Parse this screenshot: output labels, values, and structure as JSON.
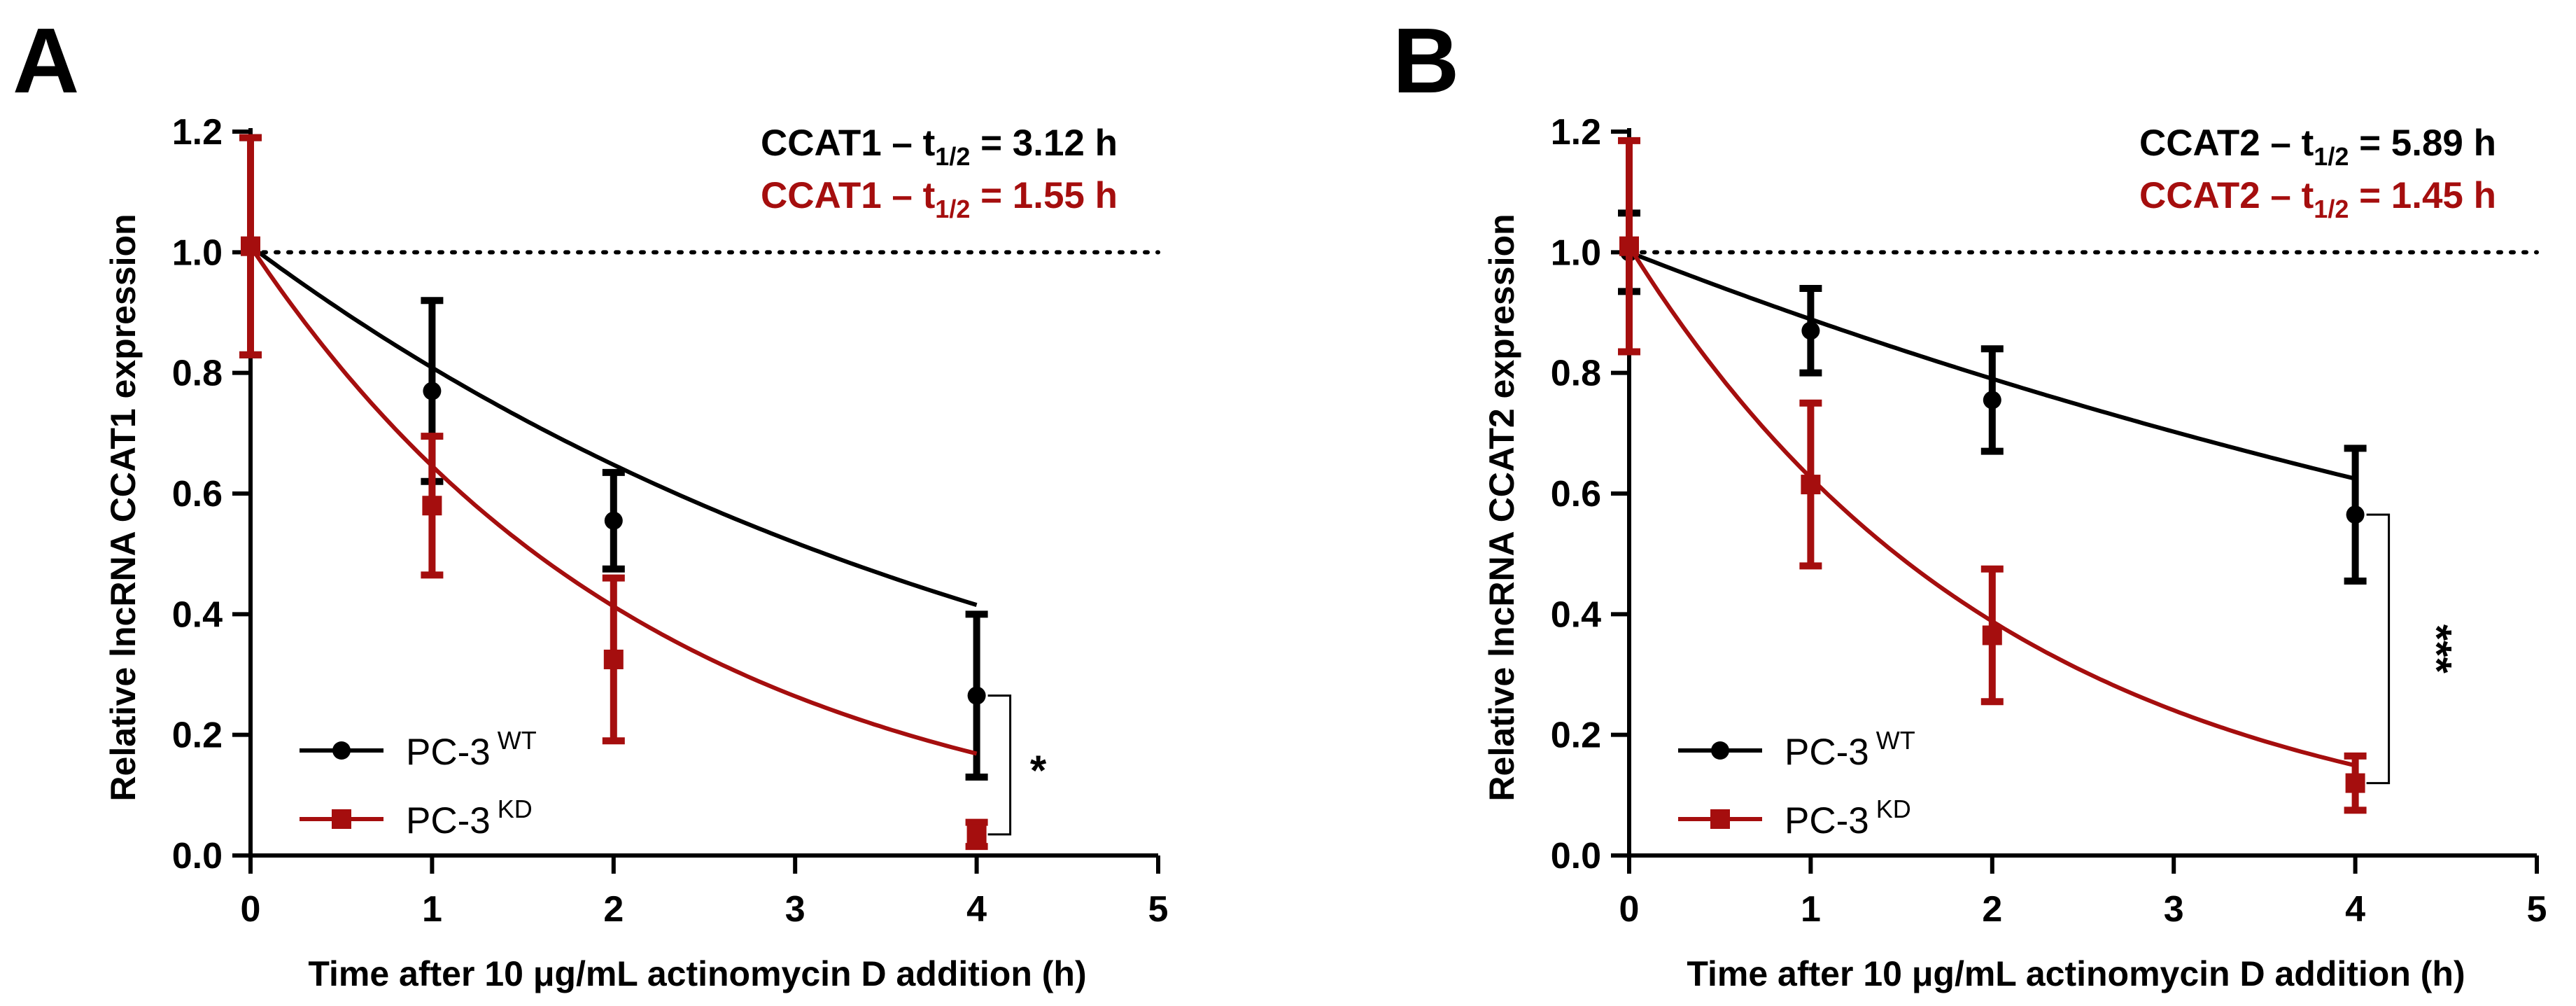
{
  "colors": {
    "wt": "#000000",
    "kd": "#a50e0e",
    "reference_line": "#000000"
  },
  "chart_data": [
    {
      "type": "line",
      "panel": "A",
      "xlabel": "Time after 10 μg/mL actinomycin D addition (h)",
      "ylabel": "Relative lncRNA CCAT1 expression",
      "xlim": [
        0,
        5
      ],
      "ylim": [
        0,
        1.2
      ],
      "x_ticks": [
        "0",
        "1",
        "2",
        "3",
        "4",
        "5"
      ],
      "y_ticks": [
        "0.0",
        "0.2",
        "0.4",
        "0.6",
        "0.8",
        "1.0",
        "1.2"
      ],
      "reference_line_y": 1.0,
      "series": [
        {
          "name": "WT",
          "legend_base": "PC-3",
          "legend_sup": "WT",
          "marker": "circle",
          "x": [
            0,
            1,
            2,
            4
          ],
          "y": [
            1.01,
            0.77,
            0.555,
            0.265
          ],
          "err": [
            0.18,
            0.15,
            0.08,
            0.135
          ],
          "half_life_h": 3.12,
          "annotation": {
            "prefix": "CCAT1 – t",
            "sub": "1/2",
            "suffix": " = 3.12 h"
          }
        },
        {
          "name": "KD",
          "legend_base": "PC-3",
          "legend_sup": "KD",
          "marker": "square",
          "x": [
            0,
            1,
            2,
            4
          ],
          "y": [
            1.01,
            0.58,
            0.325,
            0.035
          ],
          "err": [
            0.18,
            0.115,
            0.135,
            0.02
          ],
          "half_life_h": 1.55,
          "annotation": {
            "prefix": "CCAT1 – t",
            "sub": "1/2",
            "suffix": " = 1.55 h"
          }
        }
      ],
      "significance": {
        "label": "*",
        "x": 4,
        "y_range": [
          0.035,
          0.265
        ]
      }
    },
    {
      "type": "line",
      "panel": "B",
      "xlabel": "Time after 10 μg/mL actinomycin D addition (h)",
      "ylabel": "Relative lncRNA CCAT2 expression",
      "xlim": [
        0,
        5
      ],
      "ylim": [
        0,
        1.2
      ],
      "x_ticks": [
        "0",
        "1",
        "2",
        "3",
        "4",
        "5"
      ],
      "y_ticks": [
        "0.0",
        "0.2",
        "0.4",
        "0.6",
        "0.8",
        "1.0",
        "1.2"
      ],
      "reference_line_y": 1.0,
      "series": [
        {
          "name": "WT",
          "legend_base": "PC-3",
          "legend_sup": "WT",
          "marker": "circle",
          "x": [
            0,
            1,
            2,
            4
          ],
          "y": [
            1.0,
            0.87,
            0.755,
            0.565
          ],
          "err": [
            0.065,
            0.07,
            0.085,
            0.11
          ],
          "half_life_h": 5.89,
          "annotation": {
            "prefix": "CCAT2 – t",
            "sub": "1/2",
            "suffix": " = 5.89 h"
          }
        },
        {
          "name": "KD",
          "legend_base": "PC-3",
          "legend_sup": "KD",
          "marker": "square",
          "x": [
            0,
            1,
            2,
            4
          ],
          "y": [
            1.01,
            0.615,
            0.365,
            0.12
          ],
          "err": [
            0.175,
            0.135,
            0.11,
            0.045
          ],
          "half_life_h": 1.45,
          "annotation": {
            "prefix": "CCAT2 – t",
            "sub": "1/2",
            "suffix": " = 1.45 h"
          }
        }
      ],
      "significance": {
        "label": "***",
        "x": 4,
        "y_range": [
          0.12,
          0.565
        ]
      }
    }
  ]
}
